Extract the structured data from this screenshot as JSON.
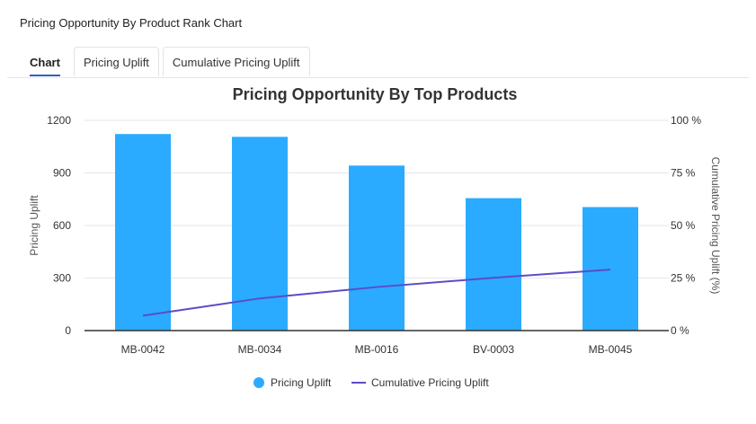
{
  "page_title": "Pricing Opportunity By Product Rank Chart",
  "tabs": [
    {
      "label": "Chart",
      "active": true
    },
    {
      "label": "Pricing Uplift",
      "active": false
    },
    {
      "label": "Cumulative Pricing Uplift",
      "active": false
    }
  ],
  "chart_data": {
    "type": "bar+line",
    "title": "Pricing Opportunity By Top Products",
    "categories": [
      "MB-0042",
      "MB-0034",
      "MB-0016",
      "BV-0003",
      "MB-0045"
    ],
    "series": [
      {
        "name": "Pricing Uplift",
        "type": "bar",
        "axis": "left",
        "color": "#2aabff",
        "values": [
          1122,
          1106,
          942,
          756,
          705
        ]
      },
      {
        "name": "Cumulative Pricing Uplift",
        "type": "line",
        "axis": "right",
        "color": "#5b4cc8",
        "values": [
          7.1,
          15.3,
          20.7,
          25.1,
          29.0
        ]
      }
    ],
    "ylabel": "Pricing Uplift",
    "ylim": [
      0,
      1200
    ],
    "yticks": [
      "0",
      "300",
      "600",
      "900",
      "1200"
    ],
    "y2label": "Cumulative Pricing Uplift (%)",
    "y2lim": [
      0,
      100
    ],
    "y2ticks": [
      "0 %",
      "25 %",
      "50 %",
      "75 %",
      "100 %"
    ],
    "grid": true,
    "legend": "bottom"
  }
}
